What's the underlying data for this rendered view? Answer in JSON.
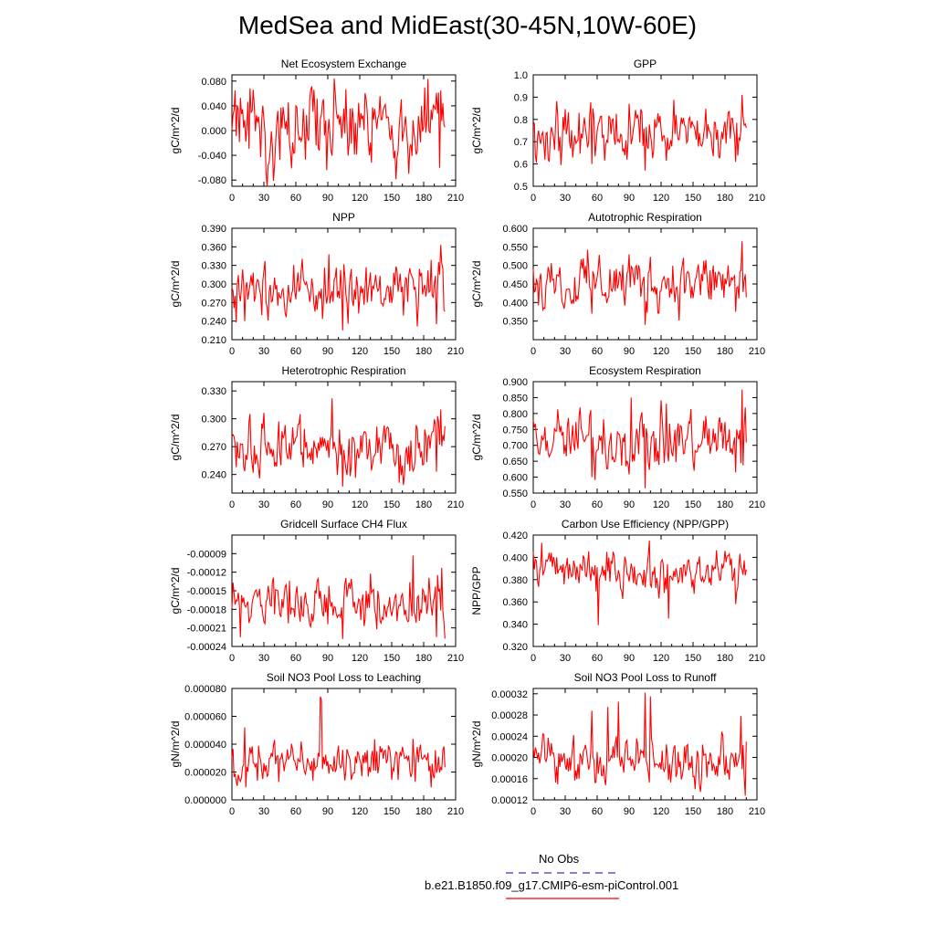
{
  "page_title": "MedSea and MidEast(30-45N,10W-60E)",
  "line_color": "#ff0000",
  "legend": {
    "obs_label": "No Obs",
    "obs_color": "#3333cc",
    "model_label": "b.e21.B1850.f09_g17.CMIP6-esm-piControl.001",
    "model_color": "#ff0000"
  },
  "chart_data": [
    {
      "type": "line",
      "title": "Net Ecosystem Exchange",
      "ylabel": "gC/m^2/d",
      "xlim": [
        0,
        210
      ],
      "ylim": [
        -0.09,
        0.09
      ],
      "xticks": [
        0,
        30,
        60,
        90,
        120,
        150,
        180,
        210
      ],
      "yticks": [
        -0.08,
        -0.04,
        0.0,
        0.04,
        0.08
      ],
      "ytick_labels": [
        "-0.080",
        "-0.040",
        "0.000",
        "0.040",
        "0.080"
      ],
      "series": [
        {
          "name": "b.e21.B1850.f09_g17.CMIP6-esm-piControl.001",
          "start": 0,
          "end": 200,
          "seed": 1,
          "mean": 0.005,
          "amp": 0.03,
          "spikes": [
            [
              8,
              0.053
            ],
            [
              107,
              0.067
            ],
            [
              195,
              -0.06
            ],
            [
              60,
              0.04
            ],
            [
              85,
              0.045
            ]
          ]
        }
      ]
    },
    {
      "type": "line",
      "title": "GPP",
      "ylabel": "gC/m^2/d",
      "xlim": [
        0,
        210
      ],
      "ylim": [
        0.5,
        1.0
      ],
      "xticks": [
        0,
        30,
        60,
        90,
        120,
        150,
        180,
        210
      ],
      "yticks": [
        0.5,
        0.6,
        0.7,
        0.8,
        0.9,
        1.0
      ],
      "ytick_labels": [
        "0.5",
        "0.6",
        "0.7",
        "0.8",
        "0.9",
        "1.0"
      ],
      "series": [
        {
          "name": "b.e21.B1850.f09_g17.CMIP6-esm-piControl.001",
          "start": 0,
          "end": 200,
          "seed": 2,
          "mean": 0.735,
          "amp": 0.06,
          "spikes": [
            [
              196,
              0.91
            ],
            [
              199,
              0.78
            ],
            [
              90,
              0.87
            ],
            [
              105,
              0.57
            ],
            [
              190,
              0.61
            ],
            [
              55,
              0.6
            ]
          ]
        }
      ]
    },
    {
      "type": "line",
      "title": "NPP",
      "ylabel": "gC/m^2/d",
      "xlim": [
        0,
        210
      ],
      "ylim": [
        0.21,
        0.39
      ],
      "xticks": [
        0,
        30,
        60,
        90,
        120,
        150,
        180,
        210
      ],
      "yticks": [
        0.21,
        0.24,
        0.27,
        0.3,
        0.33,
        0.36,
        0.39
      ],
      "ytick_labels": [
        "0.210",
        "0.240",
        "0.270",
        "0.300",
        "0.330",
        "0.360",
        "0.390"
      ],
      "series": [
        {
          "name": "b.e21.B1850.f09_g17.CMIP6-esm-piControl.001",
          "start": 0,
          "end": 200,
          "seed": 3,
          "mean": 0.287,
          "amp": 0.022,
          "spikes": [
            [
              196,
              0.363
            ],
            [
              91,
              0.348
            ],
            [
              104,
              0.225
            ],
            [
              12,
              0.24
            ],
            [
              192,
              0.235
            ]
          ]
        }
      ]
    },
    {
      "type": "line",
      "title": "Autotrophic Respiration",
      "ylabel": "gC/m^2/d",
      "xlim": [
        0,
        210
      ],
      "ylim": [
        0.3,
        0.6
      ],
      "xticks": [
        0,
        30,
        60,
        90,
        120,
        150,
        180,
        210
      ],
      "yticks": [
        0.35,
        0.4,
        0.45,
        0.5,
        0.55,
        0.6
      ],
      "ytick_labels": [
        "0.350",
        "0.400",
        "0.450",
        "0.500",
        "0.550",
        "0.600"
      ],
      "series": [
        {
          "name": "b.e21.B1850.f09_g17.CMIP6-esm-piControl.001",
          "start": 0,
          "end": 200,
          "seed": 4,
          "mean": 0.455,
          "amp": 0.035,
          "spikes": [
            [
              196,
              0.565
            ],
            [
              90,
              0.53
            ],
            [
              105,
              0.34
            ],
            [
              55,
              0.37
            ],
            [
              190,
              0.375
            ]
          ]
        }
      ]
    },
    {
      "type": "line",
      "title": "Heterotrophic Respiration",
      "ylabel": "gC/m^2/d",
      "xlim": [
        0,
        210
      ],
      "ylim": [
        0.22,
        0.34
      ],
      "xticks": [
        0,
        30,
        60,
        90,
        120,
        150,
        180,
        210
      ],
      "yticks": [
        0.24,
        0.27,
        0.3,
        0.33
      ],
      "ytick_labels": [
        "0.240",
        "0.270",
        "0.300",
        "0.330"
      ],
      "series": [
        {
          "name": "b.e21.B1850.f09_g17.CMIP6-esm-piControl.001",
          "start": 0,
          "end": 200,
          "seed": 5,
          "mean": 0.267,
          "amp": 0.014,
          "spikes": [
            [
              94,
              0.322
            ],
            [
              104,
              0.227
            ],
            [
              196,
              0.31
            ],
            [
              64,
              0.305
            ],
            [
              192,
              0.243
            ]
          ]
        }
      ]
    },
    {
      "type": "line",
      "title": "Ecosystem Respiration",
      "ylabel": "gC/m^2/d",
      "xlim": [
        0,
        210
      ],
      "ylim": [
        0.55,
        0.9
      ],
      "xticks": [
        0,
        30,
        60,
        90,
        120,
        150,
        180,
        210
      ],
      "yticks": [
        0.55,
        0.6,
        0.65,
        0.7,
        0.75,
        0.8,
        0.85,
        0.9
      ],
      "ytick_labels": [
        "0.550",
        "0.600",
        "0.650",
        "0.700",
        "0.750",
        "0.800",
        "0.850",
        "0.900"
      ],
      "series": [
        {
          "name": "b.e21.B1850.f09_g17.CMIP6-esm-piControl.001",
          "start": 0,
          "end": 200,
          "seed": 6,
          "mean": 0.715,
          "amp": 0.045,
          "spikes": [
            [
              196,
              0.875
            ],
            [
              92,
              0.85
            ],
            [
              105,
              0.565
            ],
            [
              190,
              0.615
            ],
            [
              55,
              0.6
            ]
          ]
        }
      ]
    },
    {
      "type": "line",
      "title": "Gridcell Surface CH4 Flux",
      "ylabel": "gC/m^2/d",
      "xlim": [
        0,
        210
      ],
      "ylim": [
        -0.00024,
        -6e-05
      ],
      "xticks": [
        0,
        30,
        60,
        90,
        120,
        150,
        180,
        210
      ],
      "yticks": [
        -0.00024,
        -0.00021,
        -0.00018,
        -0.00015,
        -0.00012,
        -9e-05
      ],
      "ytick_labels": [
        "-0.00024",
        "-0.00021",
        "-0.00018",
        "-0.00015",
        "-0.00012",
        "-0.00009"
      ],
      "series": [
        {
          "name": "b.e21.B1850.f09_g17.CMIP6-esm-piControl.001",
          "start": 0,
          "end": 200,
          "seed": 7,
          "mean": -0.000172,
          "amp": 1.8e-05,
          "spikes": [
            [
              170,
              -9.3e-05
            ],
            [
              197,
              -0.000113
            ],
            [
              8,
              -0.000225
            ],
            [
              104,
              -0.000228
            ],
            [
              192,
              -0.000225
            ]
          ]
        }
      ]
    },
    {
      "type": "line",
      "title": "Carbon Use Efficiency (NPP/GPP)",
      "ylabel": "NPP/GPP",
      "xlim": [
        0,
        210
      ],
      "ylim": [
        0.32,
        0.42
      ],
      "xticks": [
        0,
        30,
        60,
        90,
        120,
        150,
        180,
        210
      ],
      "yticks": [
        0.32,
        0.34,
        0.36,
        0.38,
        0.4,
        0.42
      ],
      "ytick_labels": [
        "0.320",
        "0.340",
        "0.360",
        "0.380",
        "0.400",
        "0.420"
      ],
      "series": [
        {
          "name": "b.e21.B1850.f09_g17.CMIP6-esm-piControl.001",
          "start": 0,
          "end": 200,
          "seed": 8,
          "mean": 0.388,
          "amp": 0.009,
          "spikes": [
            [
              61,
              0.339
            ],
            [
              109,
              0.415
            ],
            [
              127,
              0.345
            ],
            [
              8,
              0.413
            ],
            [
              190,
              0.358
            ]
          ]
        }
      ]
    },
    {
      "type": "line",
      "title": "Soil NO3 Pool Loss to Leaching",
      "ylabel": "gN/m^2/d",
      "xlim": [
        0,
        210
      ],
      "ylim": [
        0.0,
        8e-05
      ],
      "xticks": [
        0,
        30,
        60,
        90,
        120,
        150,
        180,
        210
      ],
      "yticks": [
        0.0,
        2e-05,
        4e-05,
        6e-05,
        8e-05
      ],
      "ytick_labels": [
        "0.000000",
        "0.000020",
        "0.000040",
        "0.000060",
        "0.000080"
      ],
      "series": [
        {
          "name": "b.e21.B1850.f09_g17.CMIP6-esm-piControl.001",
          "start": 0,
          "end": 200,
          "seed": 9,
          "mean": 2.8e-05,
          "amp": 7e-06,
          "spikes": [
            [
              83,
              7.4e-05
            ],
            [
              84,
              7.2e-05
            ],
            [
              12,
              5.2e-05
            ],
            [
              13,
              9e-06
            ],
            [
              187,
              9e-06
            ]
          ]
        }
      ]
    },
    {
      "type": "line",
      "title": "Soil NO3 Pool Loss to Runoff",
      "ylabel": "gN/m^2/d",
      "xlim": [
        0,
        210
      ],
      "ylim": [
        0.00012,
        0.00033
      ],
      "xticks": [
        0,
        30,
        60,
        90,
        120,
        150,
        180,
        210
      ],
      "yticks": [
        0.00012,
        0.00016,
        0.0002,
        0.00024,
        0.00028,
        0.00032
      ],
      "ytick_labels": [
        "0.00012",
        "0.00016",
        "0.00020",
        "0.00024",
        "0.00028",
        "0.00032"
      ],
      "series": [
        {
          "name": "b.e21.B1850.f09_g17.CMIP6-esm-piControl.001",
          "start": 0,
          "end": 200,
          "seed": 10,
          "mean": 0.000192,
          "amp": 2.2e-05,
          "spikes": [
            [
              55,
              0.000288
            ],
            [
              70,
              0.000295
            ],
            [
              80,
              0.000305
            ],
            [
              105,
              0.000322
            ],
            [
              110,
              0.000315
            ],
            [
              195,
              0.000278
            ],
            [
              199,
              0.000128
            ]
          ]
        }
      ]
    }
  ]
}
